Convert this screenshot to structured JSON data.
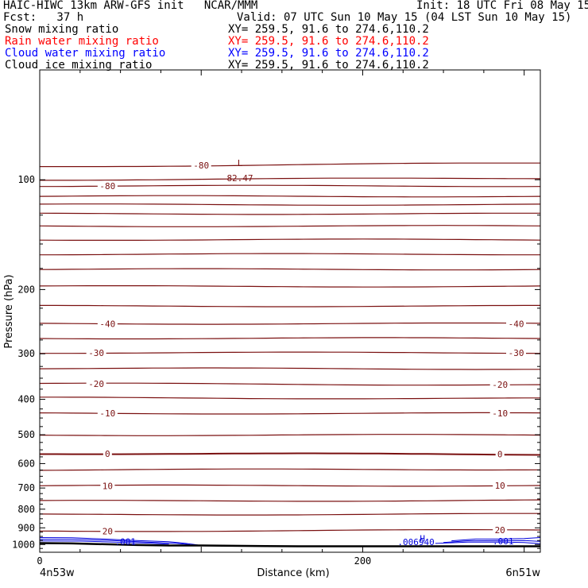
{
  "header": {
    "model_line": "HAIC-HIWC 13km ARW-GFS init   NCAR/MMM",
    "init_line": "Init: 18 UTC Fri 08 May 15",
    "fcst_line": "Fcst:   37 h",
    "valid_line": "Valid: 07 UTC Sun 10 May 15 (04 LST Sun 10 May 15)",
    "fields": [
      {
        "name": "Snow mixing ratio",
        "xy": "XY= 259.5, 91.6 to 274.6,110.2",
        "color": "#000000"
      },
      {
        "name": "Rain water mixing ratio",
        "xy": "XY= 259.5, 91.6 to 274.6,110.2",
        "color": "#ff0000"
      },
      {
        "name": "Cloud water mixing ratio",
        "xy": "XY= 259.5, 91.6 to 274.6,110.2",
        "color": "#0000ff"
      },
      {
        "name": "Cloud ice mixing ratio",
        "xy": "XY= 259.5, 91.6 to 274.6,110.2",
        "color": "#000000"
      }
    ]
  },
  "chart_data": {
    "type": "line",
    "xlabel": "Distance (km)",
    "ylabel": "Pressure (hPa)",
    "xlim": [
      0,
      310
    ],
    "ylim": [
      1050,
      50
    ],
    "y_scale": "log",
    "x_ticks": [
      0,
      200
    ],
    "y_ticks": [
      100,
      200,
      300,
      400,
      500,
      600,
      700,
      800,
      900,
      1000
    ],
    "x_end_labels": {
      "left": "4n53w",
      "right": "6n51w"
    },
    "colors": {
      "temperature": "#7a1010",
      "cloud_water": "#0000dd",
      "terrain": "#000000"
    },
    "temperature_contours": [
      {
        "p_left": 92,
        "p_right": 90,
        "label": "-80",
        "label_x": [
          100
        ]
      },
      {
        "p_left": 100,
        "p_right": 99
      },
      {
        "p_left": 104,
        "p_right": 104,
        "label": "-80",
        "label_x": [
          42
        ]
      },
      {
        "p_left": 111,
        "p_right": 111
      },
      {
        "p_left": 117,
        "p_right": 117
      },
      {
        "p_left": 124,
        "p_right": 124
      },
      {
        "p_left": 134,
        "p_right": 134
      },
      {
        "p_left": 146,
        "p_right": 146
      },
      {
        "p_left": 160,
        "p_right": 160
      },
      {
        "p_left": 176,
        "p_right": 176
      },
      {
        "p_left": 196,
        "p_right": 196
      },
      {
        "p_left": 222,
        "p_right": 222
      },
      {
        "p_left": 248,
        "p_right": 248,
        "label": "-40",
        "label_x": [
          42,
          295
        ]
      },
      {
        "p_left": 272,
        "p_right": 272
      },
      {
        "p_left": 298,
        "p_right": 298,
        "label": "-30",
        "label_x": [
          35,
          295
        ]
      },
      {
        "p_left": 329,
        "p_right": 330
      },
      {
        "p_left": 362,
        "p_right": 365,
        "label": "-20",
        "label_x": [
          35,
          285
        ]
      },
      {
        "p_left": 396,
        "p_right": 398
      },
      {
        "p_left": 437,
        "p_right": 437,
        "label": "-10",
        "label_x": [
          42,
          285
        ]
      },
      {
        "p_left": 501,
        "p_right": 501
      },
      {
        "p_left": 563,
        "p_right": 566,
        "label": "0",
        "label_x": [
          42,
          285
        ]
      },
      {
        "p_left": 624,
        "p_right": 622
      },
      {
        "p_left": 690,
        "p_right": 689,
        "label": "10",
        "label_x": [
          42,
          285
        ]
      },
      {
        "p_left": 760,
        "p_right": 757
      },
      {
        "p_left": 828,
        "p_right": 825
      },
      {
        "p_left": 919,
        "p_right": 913,
        "label": "20",
        "label_x": [
          42,
          285
        ]
      }
    ],
    "annotations": [
      {
        "text": "L",
        "x": 124,
        "p": 90
      },
      {
        "text": "82.47",
        "x": 124,
        "p": 99
      },
      {
        "text": "H",
        "x": 237,
        "p": 962
      },
      {
        "text": ".006940",
        "x": 233,
        "p": 984
      },
      {
        "text": ".001",
        "x": 53,
        "p": 981
      },
      {
        "text": ".001",
        "x": 287,
        "p": 978
      }
    ],
    "terrain": {
      "x": [
        0,
        20,
        40,
        60,
        80,
        100,
        120,
        140,
        160,
        180,
        200,
        220,
        240,
        260,
        280,
        300,
        310
      ],
      "p": [
        991,
        993,
        998,
        1003,
        1006,
        1006,
        1008,
        1010,
        1011,
        1011,
        1011,
        1011,
        1011,
        1011,
        1011,
        1011,
        1011
      ]
    }
  }
}
